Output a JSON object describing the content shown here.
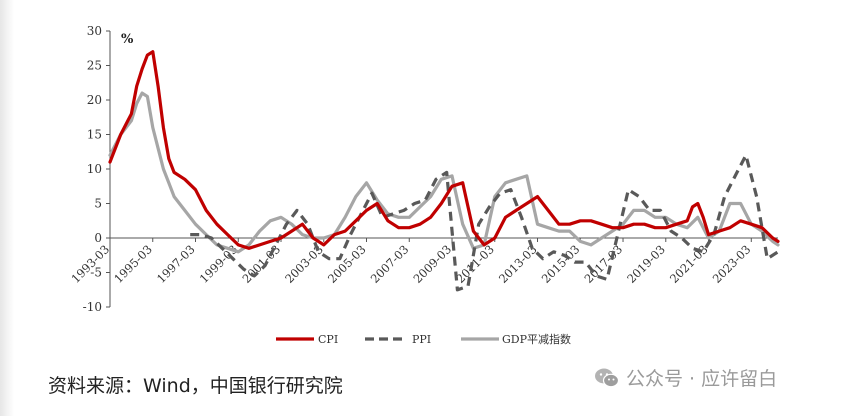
{
  "chart_data": {
    "type": "line",
    "unit_label": "%",
    "ylim": [
      -10,
      30
    ],
    "yticks": [
      "30",
      "25",
      "20",
      "15",
      "10",
      "5",
      "0",
      "-5",
      "-10"
    ],
    "x_range": [
      "1993-03",
      "2024-06"
    ],
    "xtick_labels": [
      "1993-03",
      "1995-03",
      "1997-03",
      "1999-03",
      "2001-03",
      "2003-03",
      "2005-03",
      "2007-03",
      "2009-03",
      "2011-03",
      "2013-03",
      "2015-03",
      "2017-03",
      "2019-03",
      "2021-03",
      "2023-03"
    ],
    "grid": false,
    "legend_position": "bottom",
    "series": [
      {
        "name": "CPI",
        "color": "#c00000",
        "dash": "solid",
        "x": [
          "1993-03",
          "1993-09",
          "1994-03",
          "1994-06",
          "1994-09",
          "1994-12",
          "1995-03",
          "1995-06",
          "1995-09",
          "1995-12",
          "1996-03",
          "1996-09",
          "1997-03",
          "1997-09",
          "1998-03",
          "1998-09",
          "1999-03",
          "1999-09",
          "2000-03",
          "2000-09",
          "2001-03",
          "2001-09",
          "2002-03",
          "2002-09",
          "2003-03",
          "2003-09",
          "2004-03",
          "2004-09",
          "2005-03",
          "2005-09",
          "2006-03",
          "2006-09",
          "2007-03",
          "2007-09",
          "2008-03",
          "2008-09",
          "2009-03",
          "2009-09",
          "2010-03",
          "2010-09",
          "2011-03",
          "2011-09",
          "2012-03",
          "2012-09",
          "2013-03",
          "2013-09",
          "2014-03",
          "2014-09",
          "2015-03",
          "2015-09",
          "2016-03",
          "2016-09",
          "2017-03",
          "2017-09",
          "2018-03",
          "2018-09",
          "2019-03",
          "2019-09",
          "2020-03",
          "2020-06",
          "2020-09",
          "2020-12",
          "2021-03",
          "2021-09",
          "2022-03",
          "2022-09",
          "2023-03",
          "2023-09",
          "2024-03",
          "2024-06"
        ],
        "values": [
          11,
          15,
          18,
          22,
          24.5,
          26.5,
          27,
          22,
          16,
          11.5,
          9.5,
          8.5,
          7,
          4,
          2,
          0.5,
          -1,
          -1.5,
          -1,
          -0.5,
          0,
          1,
          2,
          0,
          -1,
          0.5,
          1,
          2.5,
          4,
          5,
          2.5,
          1.5,
          1.5,
          2,
          3,
          5,
          7.5,
          8,
          1,
          -1,
          0,
          3,
          4,
          5,
          6,
          4,
          2,
          2,
          2.5,
          2.5,
          2,
          1.5,
          1.5,
          2,
          2,
          1.5,
          1.5,
          2,
          2.5,
          4.5,
          5,
          3,
          0.5,
          1,
          1.5,
          2.5,
          2,
          1.5,
          0,
          -0.5
        ]
      },
      {
        "name": "PPI",
        "color": "#595959",
        "dash": "dashed",
        "x": [
          "1996-12",
          "1997-06",
          "1997-12",
          "1998-06",
          "1998-12",
          "1999-06",
          "1999-12",
          "2000-06",
          "2000-12",
          "2001-06",
          "2001-12",
          "2002-06",
          "2002-12",
          "2003-06",
          "2003-12",
          "2004-06",
          "2004-12",
          "2005-06",
          "2005-12",
          "2006-06",
          "2006-12",
          "2007-06",
          "2007-12",
          "2008-06",
          "2008-12",
          "2009-06",
          "2009-12",
          "2010-06",
          "2010-12",
          "2011-06",
          "2011-12",
          "2012-06",
          "2012-12",
          "2013-06",
          "2013-12",
          "2014-06",
          "2014-12",
          "2015-06",
          "2015-12",
          "2016-06",
          "2016-12",
          "2017-06",
          "2017-12",
          "2018-06",
          "2018-12",
          "2019-06",
          "2019-12",
          "2020-06",
          "2020-12",
          "2021-06",
          "2021-12",
          "2022-06",
          "2022-12",
          "2023-06",
          "2023-12",
          "2024-06"
        ],
        "values": [
          0.5,
          0.5,
          0,
          -1.5,
          -3,
          -4.5,
          -5.5,
          -4,
          -1,
          2,
          4,
          2,
          -2,
          -3,
          -3,
          0.5,
          3.5,
          6.5,
          3,
          3.5,
          4,
          5,
          5.5,
          8.5,
          9.5,
          -7.5,
          -7,
          2,
          4.5,
          6.5,
          7,
          3,
          -1.5,
          -3,
          -2,
          -2.5,
          -3.5,
          -3.5,
          -5.5,
          -6,
          0.5,
          7,
          6,
          4,
          4,
          1,
          0,
          -1.5,
          -2,
          0.5,
          6,
          9,
          12,
          6,
          -3,
          -2
        ]
      },
      {
        "name": "GDP平减指数",
        "color": "#a6a6a6",
        "dash": "solid",
        "x": [
          "1993-03",
          "1993-09",
          "1994-03",
          "1994-06",
          "1994-09",
          "1994-12",
          "1995-03",
          "1995-06",
          "1995-09",
          "1995-12",
          "1996-03",
          "1996-09",
          "1997-03",
          "1997-09",
          "1998-03",
          "1998-09",
          "1999-03",
          "1999-09",
          "2000-03",
          "2000-09",
          "2001-03",
          "2001-09",
          "2002-03",
          "2002-09",
          "2003-03",
          "2003-09",
          "2004-03",
          "2004-09",
          "2005-03",
          "2005-09",
          "2006-03",
          "2006-09",
          "2007-03",
          "2007-09",
          "2008-03",
          "2008-09",
          "2009-03",
          "2009-09",
          "2010-03",
          "2010-09",
          "2011-03",
          "2011-09",
          "2012-03",
          "2012-09",
          "2013-03",
          "2013-09",
          "2014-03",
          "2014-09",
          "2015-03",
          "2015-09",
          "2016-03",
          "2016-09",
          "2017-03",
          "2017-09",
          "2018-03",
          "2018-09",
          "2019-03",
          "2019-09",
          "2020-03",
          "2020-09",
          "2021-03",
          "2021-09",
          "2022-03",
          "2022-09",
          "2023-03",
          "2023-09",
          "2024-03",
          "2024-06"
        ],
        "values": [
          12,
          15,
          17,
          19.5,
          21,
          20.5,
          16,
          13,
          10,
          8,
          6,
          4,
          2,
          0.5,
          -1,
          -1.5,
          -2,
          -1,
          1,
          2.5,
          3,
          2,
          0.5,
          0,
          0,
          0.5,
          3,
          6,
          8,
          5.5,
          3.5,
          3,
          3,
          4.5,
          6,
          8.5,
          9,
          2,
          -1.5,
          -1,
          6,
          8,
          8.5,
          9,
          2,
          1.5,
          1,
          1,
          -0.5,
          -1,
          0,
          1,
          2,
          4,
          4,
          3,
          3,
          2,
          1.5,
          3,
          0,
          1,
          5,
          5,
          2,
          1,
          -0.5,
          -1
        ]
      }
    ]
  },
  "source_text": "资料来源：Wind，中国银行研究院",
  "watermark_text": "公众号 · 应许留白",
  "colors": {
    "axis": "#555555",
    "watermark": "#9a9a9a"
  }
}
